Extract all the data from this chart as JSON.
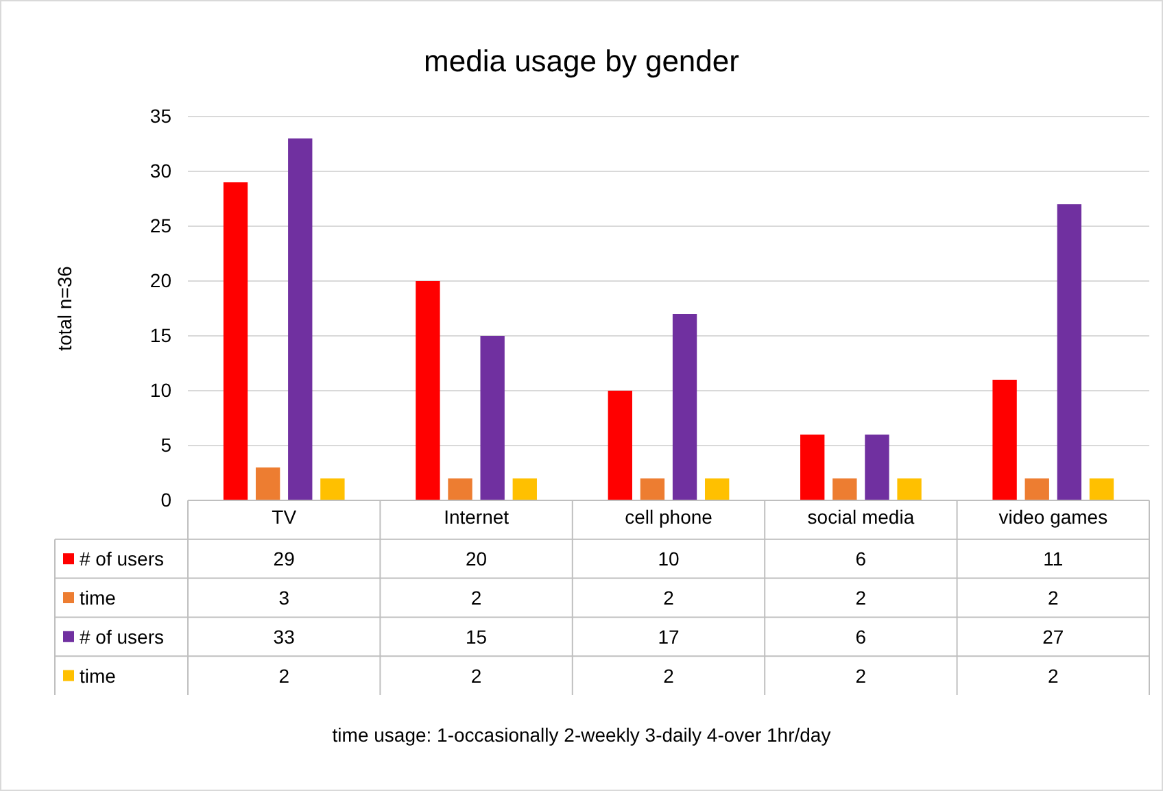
{
  "chart_data": {
    "type": "bar",
    "title": "media usage by gender",
    "ylabel": "total n=36",
    "categories": [
      "TV",
      "Internet",
      "cell phone",
      "social media",
      "video games"
    ],
    "series": [
      {
        "name": "# of users",
        "color": "#ff0000",
        "values": [
          29,
          20,
          10,
          6,
          11
        ]
      },
      {
        "name": "time",
        "color": "#ed7d31",
        "values": [
          3,
          2,
          2,
          2,
          2
        ]
      },
      {
        "name": "# of users",
        "color": "#7030a0",
        "values": [
          33,
          15,
          17,
          6,
          27
        ]
      },
      {
        "name": "time",
        "color": "#ffc000",
        "values": [
          2,
          2,
          2,
          2,
          2
        ]
      }
    ],
    "ylim": [
      0,
      35
    ],
    "yticks": [
      0,
      5,
      10,
      15,
      20,
      25,
      30,
      35
    ],
    "grid": "y",
    "data_labels": true,
    "legend": "bottom",
    "annotations": [
      "time usage: 1-occasionally 2-weekly 3-daily 4-over 1hr/day"
    ]
  }
}
